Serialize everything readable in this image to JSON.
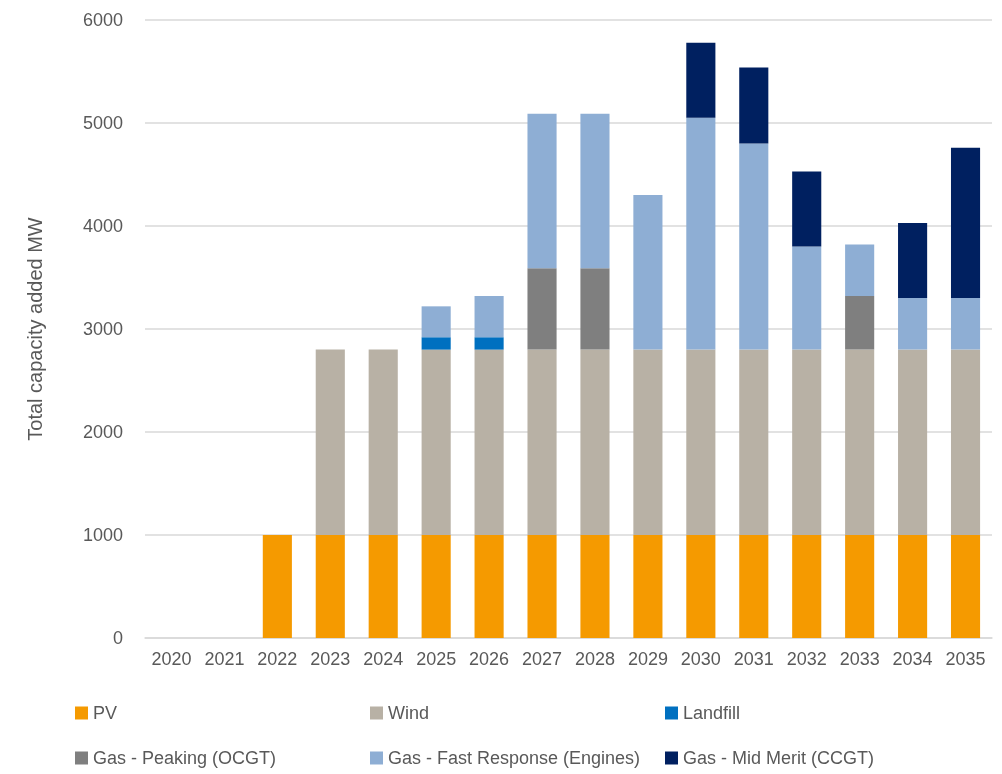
{
  "chart_data": {
    "type": "bar",
    "stacked": true,
    "ylabel": "Total capacity added MW",
    "categories": [
      "2020",
      "2021",
      "2022",
      "2023",
      "2024",
      "2025",
      "2026",
      "2027",
      "2028",
      "2029",
      "2030",
      "2031",
      "2032",
      "2033",
      "2034",
      "2035"
    ],
    "series": [
      {
        "name": "PV",
        "color": "#f59a00",
        "values": [
          0,
          0,
          1000,
          1000,
          1000,
          1000,
          1000,
          1000,
          1000,
          1000,
          1000,
          1000,
          1000,
          1000,
          1000,
          1000
        ]
      },
      {
        "name": "Wind",
        "color": "#b8b1a5",
        "values": [
          0,
          0,
          0,
          1800,
          1800,
          1800,
          1800,
          1800,
          1800,
          1800,
          1800,
          1800,
          1800,
          1800,
          1800,
          1800
        ]
      },
      {
        "name": "Landfill",
        "color": "#0070c0",
        "values": [
          0,
          0,
          0,
          0,
          0,
          120,
          120,
          0,
          0,
          0,
          0,
          0,
          0,
          0,
          0,
          0
        ]
      },
      {
        "name": "Gas - Peaking (OCGT)",
        "color": "#7f7f7f",
        "values": [
          0,
          0,
          0,
          0,
          0,
          0,
          0,
          790,
          790,
          0,
          0,
          0,
          0,
          520,
          0,
          0
        ]
      },
      {
        "name": "Gas - Fast Response (Engines)",
        "color": "#8eaed4",
        "values": [
          0,
          0,
          0,
          0,
          0,
          300,
          400,
          1500,
          1500,
          1500,
          2250,
          2000,
          1000,
          500,
          500,
          500
        ]
      },
      {
        "name": "Gas - Mid Merit (CCGT)",
        "color": "#002060",
        "values": [
          0,
          0,
          0,
          0,
          0,
          0,
          0,
          0,
          0,
          0,
          730,
          740,
          730,
          0,
          730,
          1460
        ]
      }
    ],
    "ylim": [
      0,
      6000
    ],
    "yticks": [
      0,
      1000,
      2000,
      3000,
      4000,
      5000,
      6000
    ],
    "grid": "y",
    "legend": "bottom"
  }
}
